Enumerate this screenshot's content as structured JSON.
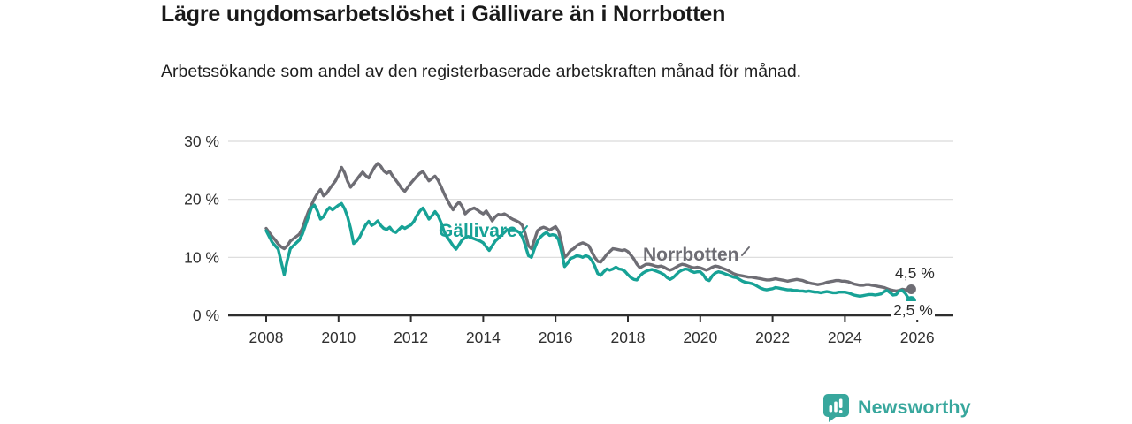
{
  "header": {
    "title": "Lägre ungdomsarbetslöshet i Gällivare än i Norrbotten",
    "subtitle": "Arbetssökande som andel av den registerbaserade arbetskraften månad för månad."
  },
  "chart_data": {
    "type": "line",
    "frequency": "monthly",
    "x_start": "2008-01",
    "x_end": "2025-11",
    "ylim": [
      0,
      30
    ],
    "grid": "horizontal",
    "y_axis": {
      "ticks": [
        {
          "value": 0,
          "label": "0 %"
        },
        {
          "value": 10,
          "label": "10 %"
        },
        {
          "value": 20,
          "label": "20 %"
        },
        {
          "value": 30,
          "label": "30 %"
        }
      ]
    },
    "x_axis": {
      "ticks": [
        {
          "value": 2008,
          "label": "2008"
        },
        {
          "value": 2010,
          "label": "2010"
        },
        {
          "value": 2012,
          "label": "2012"
        },
        {
          "value": 2014,
          "label": "2014"
        },
        {
          "value": 2016,
          "label": "2016"
        },
        {
          "value": 2018,
          "label": "2018"
        },
        {
          "value": 2020,
          "label": "2020"
        },
        {
          "value": 2022,
          "label": "2022"
        },
        {
          "value": 2024,
          "label": "2024"
        },
        {
          "value": 2026,
          "label": "2026"
        }
      ]
    },
    "series": [
      {
        "name": "Gällivare",
        "color": "#17A296",
        "end_label": "2,5 %",
        "end_value": 2.5,
        "values": [
          14.6,
          13.6,
          12.6,
          12.0,
          11.4,
          9.2,
          7.0,
          9.5,
          11.5,
          12.0,
          12.5,
          13.0,
          14.0,
          15.5,
          17.0,
          18.5,
          19.0,
          18.0,
          16.6,
          17.0,
          18.0,
          18.6,
          18.2,
          18.6,
          19.0,
          19.3,
          18.4,
          17.0,
          15.0,
          12.4,
          12.8,
          13.5,
          14.6,
          15.6,
          16.2,
          15.5,
          15.8,
          16.3,
          15.5,
          15.0,
          14.8,
          15.2,
          14.5,
          14.3,
          14.8,
          15.3,
          15.0,
          15.3,
          15.6,
          16.2,
          17.2,
          18.0,
          18.5,
          17.6,
          16.6,
          17.2,
          17.9,
          17.2,
          16.0,
          14.5,
          13.5,
          12.8,
          12.0,
          11.4,
          12.2,
          13.0,
          13.4,
          13.6,
          13.4,
          13.2,
          13.0,
          12.8,
          12.5,
          11.8,
          11.2,
          12.0,
          12.8,
          13.3,
          13.8,
          14.3,
          14.8,
          14.6,
          14.9,
          14.6,
          14.3,
          13.5,
          12.0,
          10.3,
          10.0,
          11.5,
          12.8,
          13.5,
          14.0,
          14.3,
          13.8,
          13.9,
          13.8,
          13.0,
          11.0,
          8.4,
          9.0,
          9.8,
          10.0,
          10.3,
          10.2,
          10.0,
          10.3,
          10.1,
          9.5,
          8.5,
          7.2,
          6.9,
          7.5,
          8.0,
          7.8,
          8.0,
          8.3,
          8.0,
          7.9,
          7.6,
          7.0,
          6.5,
          6.2,
          6.1,
          6.8,
          7.3,
          7.6,
          7.8,
          7.9,
          7.7,
          7.5,
          7.3,
          7.0,
          6.5,
          6.2,
          6.5,
          7.0,
          7.5,
          7.8,
          8.0,
          7.9,
          7.6,
          7.4,
          7.5,
          7.5,
          7.0,
          6.2,
          6.0,
          6.8,
          7.3,
          7.5,
          7.4,
          7.2,
          7.0,
          6.8,
          6.6,
          6.5,
          6.2,
          5.9,
          5.7,
          5.6,
          5.5,
          5.3,
          5.0,
          4.7,
          4.5,
          4.4,
          4.5,
          4.6,
          4.8,
          4.7,
          4.6,
          4.5,
          4.4,
          4.4,
          4.3,
          4.3,
          4.2,
          4.2,
          4.1,
          4.2,
          4.1,
          4.0,
          4.0,
          3.9,
          4.0,
          4.1,
          4.0,
          3.9,
          3.9,
          4.0,
          4.0,
          4.0,
          3.9,
          3.7,
          3.5,
          3.4,
          3.3,
          3.4,
          3.5,
          3.6,
          3.6,
          3.5,
          3.6,
          3.7,
          4.1,
          4.3,
          3.9,
          3.5,
          3.6,
          4.2,
          4.3,
          3.8,
          3.0,
          2.5
        ]
      },
      {
        "name": "Norrbotten",
        "color": "#6E6D74",
        "end_label": "4,5 %",
        "end_value": 4.5,
        "values": [
          15.0,
          14.3,
          13.6,
          13.0,
          12.3,
          11.8,
          11.5,
          12.0,
          12.8,
          13.2,
          13.6,
          14.0,
          15.0,
          16.5,
          17.9,
          19.0,
          20.1,
          21.0,
          21.7,
          20.6,
          21.0,
          21.8,
          22.5,
          23.2,
          24.2,
          25.5,
          24.6,
          23.1,
          22.1,
          22.7,
          23.4,
          24.1,
          24.7,
          24.1,
          23.7,
          24.7,
          25.6,
          26.2,
          25.7,
          24.9,
          24.5,
          24.8,
          24.0,
          23.3,
          22.6,
          21.8,
          21.4,
          22.1,
          22.8,
          23.4,
          24.0,
          24.5,
          24.8,
          24.0,
          23.2,
          23.6,
          24.0,
          23.3,
          22.2,
          21.0,
          20.0,
          19.0,
          18.2,
          19.0,
          19.5,
          18.8,
          17.5,
          18.0,
          18.3,
          18.5,
          18.2,
          17.8,
          17.5,
          18.0,
          17.2,
          16.3,
          17.0,
          17.4,
          17.3,
          17.5,
          17.2,
          16.8,
          16.5,
          16.3,
          16.0,
          15.5,
          14.0,
          12.0,
          11.5,
          13.0,
          14.6,
          15.0,
          15.2,
          15.0,
          14.7,
          15.0,
          15.3,
          14.5,
          12.5,
          10.0,
          10.5,
          11.2,
          11.5,
          12.0,
          12.3,
          12.5,
          12.3,
          12.0,
          11.0,
          10.0,
          9.3,
          9.2,
          9.8,
          10.5,
          11.0,
          11.5,
          11.4,
          11.3,
          11.2,
          11.3,
          11.0,
          10.4,
          9.7,
          8.8,
          8.2,
          8.5,
          8.8,
          8.8,
          8.7,
          8.5,
          8.4,
          8.5,
          8.3,
          8.0,
          7.8,
          8.0,
          8.3,
          8.6,
          8.8,
          8.7,
          8.5,
          8.3,
          8.2,
          8.3,
          8.2,
          8.0,
          7.8,
          8.0,
          8.3,
          8.5,
          8.4,
          8.2,
          8.0,
          7.8,
          7.5,
          7.2,
          7.0,
          6.9,
          6.8,
          6.7,
          6.6,
          6.6,
          6.5,
          6.4,
          6.3,
          6.2,
          6.1,
          6.1,
          6.2,
          6.3,
          6.2,
          6.1,
          6.0,
          5.9,
          6.0,
          6.1,
          6.2,
          6.1,
          6.0,
          5.8,
          5.6,
          5.5,
          5.4,
          5.3,
          5.4,
          5.5,
          5.7,
          5.8,
          5.9,
          6.0,
          6.0,
          5.9,
          5.9,
          5.8,
          5.6,
          5.4,
          5.3,
          5.2,
          5.2,
          5.3,
          5.3,
          5.2,
          5.1,
          5.0,
          4.9,
          4.8,
          4.6,
          4.4,
          4.3,
          4.2,
          4.3,
          4.5,
          4.4,
          4.3,
          4.5
        ]
      }
    ],
    "colors": {
      "grid": "#DADADA",
      "axis": "#2E2E2E",
      "tick_text": "#303030"
    }
  },
  "footer": {
    "brand": "Newsworthy"
  }
}
